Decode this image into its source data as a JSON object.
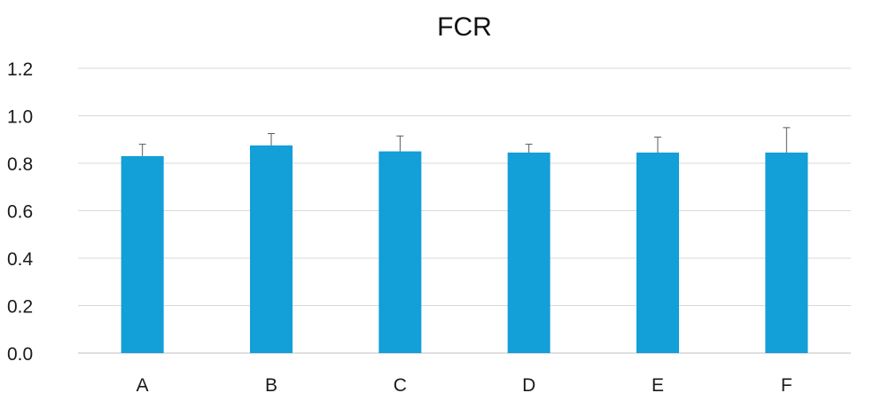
{
  "chart_data": {
    "type": "bar",
    "title": "FCR",
    "xlabel": "",
    "ylabel": "",
    "categories": [
      "A",
      "B",
      "C",
      "D",
      "E",
      "F"
    ],
    "values": [
      0.83,
      0.875,
      0.85,
      0.845,
      0.845,
      0.845
    ],
    "error_upper": [
      0.05,
      0.05,
      0.065,
      0.035,
      0.065,
      0.105
    ],
    "ylim": [
      0.0,
      1.2
    ],
    "yticks": [
      "0.0",
      "0.2",
      "0.4",
      "0.6",
      "0.8",
      "1.0",
      "1.2"
    ],
    "ytick_values": [
      0.0,
      0.2,
      0.4,
      0.6,
      0.8,
      1.0,
      1.2
    ],
    "grid": true,
    "legend": "none",
    "colors": {
      "bar": "#139fd8",
      "grid": "#d9d9d9",
      "error": "#595959"
    }
  }
}
